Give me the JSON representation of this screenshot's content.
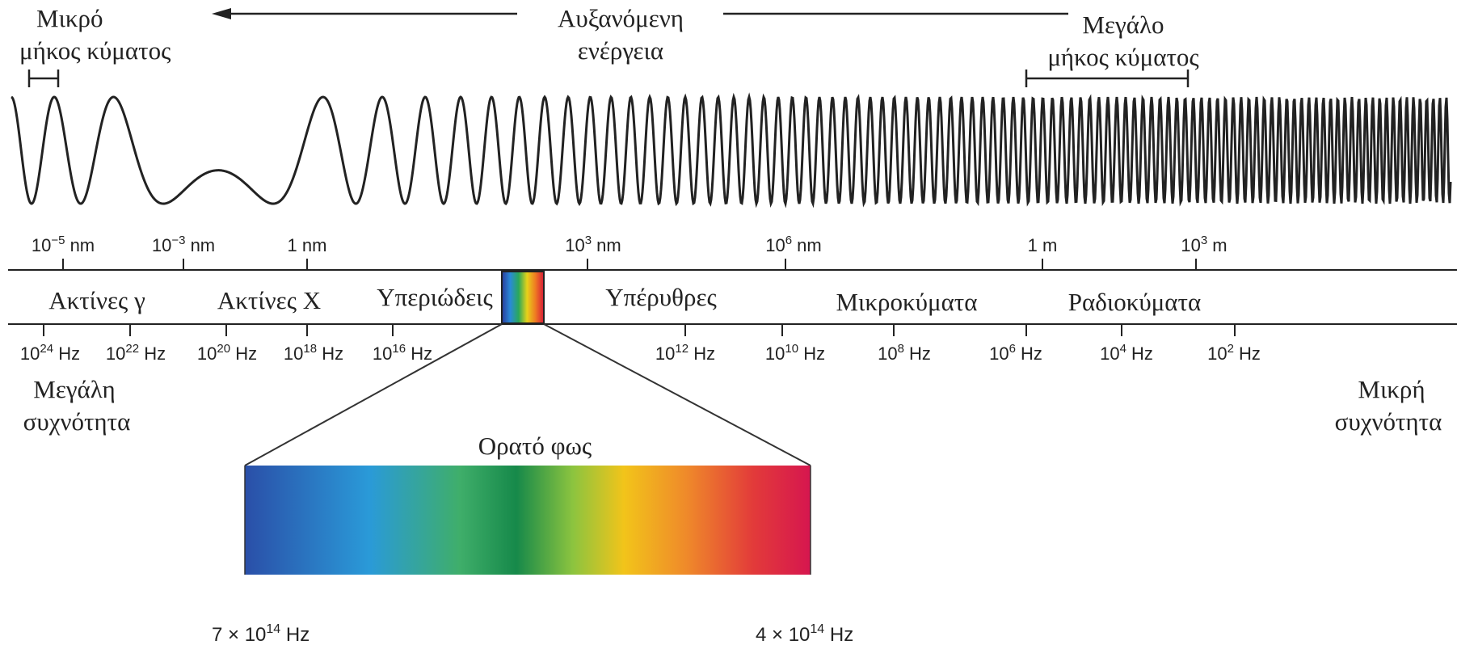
{
  "header": {
    "short_wave_line1": "Μικρό",
    "short_wave_line2": "μήκος κύματος",
    "energy_line1": "Αυξανόμενη",
    "energy_line2": "ενέργεια",
    "long_wave_line1": "Μεγάλο",
    "long_wave_line2": "μήκος κύματος"
  },
  "wavelength_scale": [
    {
      "base": "10",
      "exp": "−5",
      "unit": " nm"
    },
    {
      "base": "10",
      "exp": "−3",
      "unit": " nm"
    },
    {
      "base": "",
      "exp": "",
      "unit": "1 nm"
    },
    {
      "base": "10",
      "exp": "3",
      "unit": " nm"
    },
    {
      "base": "10",
      "exp": "6",
      "unit": " nm"
    },
    {
      "base": "",
      "exp": "",
      "unit": "1 m"
    },
    {
      "base": "10",
      "exp": "3",
      "unit": " m"
    }
  ],
  "bands": {
    "gamma": "Ακτίνες γ",
    "xray": "Ακτίνες X",
    "uv": "Υπεριώδεις",
    "ir": "Υπέρυθρες",
    "micro": "Μικροκύματα",
    "radio": "Ραδιοκύματα"
  },
  "frequency_scale": [
    {
      "base": "10",
      "exp": "24",
      "unit": " Hz"
    },
    {
      "base": "10",
      "exp": "22",
      "unit": " Hz"
    },
    {
      "base": "10",
      "exp": "20",
      "unit": " Hz"
    },
    {
      "base": "10",
      "exp": "18",
      "unit": " Hz"
    },
    {
      "base": "10",
      "exp": "16",
      "unit": " Hz"
    },
    {
      "base": "10",
      "exp": "12",
      "unit": " Hz"
    },
    {
      "base": "10",
      "exp": "10",
      "unit": " Hz"
    },
    {
      "base": "10",
      "exp": "8",
      "unit": " Hz"
    },
    {
      "base": "10",
      "exp": "6",
      "unit": " Hz"
    },
    {
      "base": "10",
      "exp": "4",
      "unit": " Hz"
    },
    {
      "base": "10",
      "exp": "2",
      "unit": " Hz"
    }
  ],
  "freq_notes": {
    "high_line1": "Μεγάλη",
    "high_line2": "συχνότητα",
    "low_line1": "Μικρή",
    "low_line2": "συχνότητα"
  },
  "visible": {
    "title": "Ορατό φως",
    "left_freq": {
      "base": "7 × 10",
      "exp": "14",
      "unit": " Hz"
    },
    "right_freq": {
      "base": "4 × 10",
      "exp": "14",
      "unit": " Hz"
    }
  },
  "colors": {
    "line": "#222222",
    "spectrum_stops": [
      "#2a4fa8",
      "#2a9ad8",
      "#3fae6a",
      "#16894a",
      "#8cc43f",
      "#f2c41a",
      "#ef8a2a",
      "#e23a3a",
      "#d6164f"
    ]
  }
}
